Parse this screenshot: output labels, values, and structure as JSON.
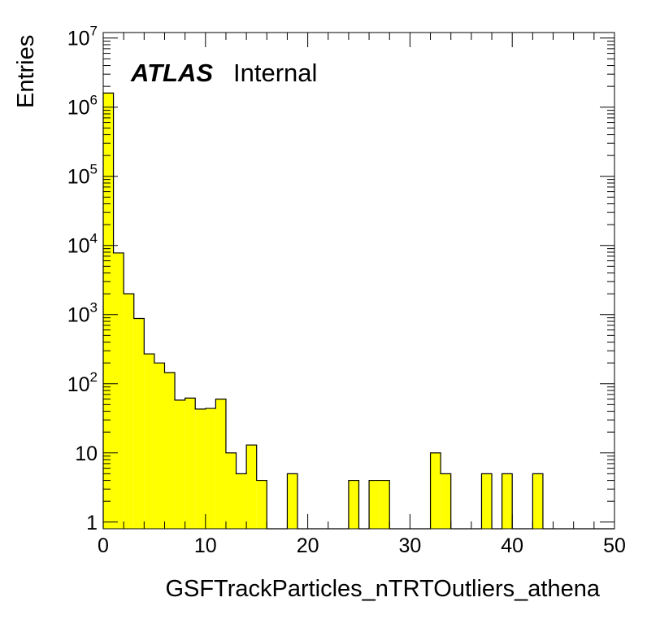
{
  "chart_data": {
    "type": "bar",
    "style": "histogram-step-filled",
    "fill_color": "#ffff00",
    "line_color": "#000000",
    "xlabel": "GSFTrackParticles_nTRTOutliers_athena",
    "ylabel": "Entries",
    "xlim": [
      0,
      50
    ],
    "ylim": [
      0.8,
      12000000
    ],
    "y_scale": "log",
    "x_ticks": [
      {
        "value": 0,
        "label": "0"
      },
      {
        "value": 10,
        "label": "10"
      },
      {
        "value": 20,
        "label": "20"
      },
      {
        "value": 30,
        "label": "30"
      },
      {
        "value": 40,
        "label": "40"
      },
      {
        "value": 50,
        "label": "50"
      }
    ],
    "y_ticks": [
      {
        "value": 1,
        "base": "1",
        "exp": ""
      },
      {
        "value": 10,
        "base": "10",
        "exp": ""
      },
      {
        "value": 100,
        "base": "10",
        "exp": "2"
      },
      {
        "value": 1000,
        "base": "10",
        "exp": "3"
      },
      {
        "value": 10000,
        "base": "10",
        "exp": "4"
      },
      {
        "value": 100000,
        "base": "10",
        "exp": "5"
      },
      {
        "value": 1000000,
        "base": "10",
        "exp": "6"
      },
      {
        "value": 10000000,
        "base": "10",
        "exp": "7"
      }
    ],
    "bin_width": 1,
    "bins_x": [
      0,
      1,
      2,
      3,
      4,
      5,
      6,
      7,
      8,
      9,
      10,
      11,
      12,
      13,
      14,
      15,
      16,
      17,
      18,
      19,
      20,
      21,
      22,
      23,
      24,
      25,
      26,
      27,
      28,
      29,
      30,
      31,
      32,
      33,
      34,
      35,
      36,
      37,
      38,
      39,
      40,
      41,
      42,
      43,
      44,
      45,
      46,
      47,
      48,
      49
    ],
    "values": [
      1600000,
      7800,
      2000,
      880,
      270,
      200,
      145,
      58,
      62,
      43,
      44,
      60,
      10,
      5,
      13,
      4,
      0,
      0,
      5,
      0,
      0,
      0,
      0,
      0,
      4,
      0,
      4,
      4,
      0,
      0,
      0,
      0,
      10,
      5,
      0,
      0,
      0,
      5,
      0,
      5,
      0,
      0,
      5,
      0,
      0,
      0,
      0,
      0,
      0,
      0
    ]
  },
  "annotation": {
    "atlas": "ATLAS",
    "internal": "Internal"
  }
}
